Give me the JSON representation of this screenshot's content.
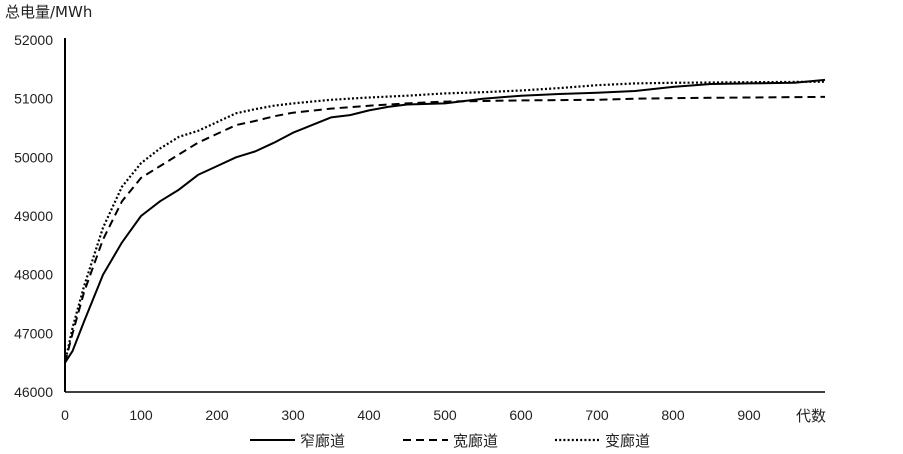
{
  "chart_data": {
    "type": "line",
    "ylabel": "总电量/MWh",
    "xlabel": "代数",
    "ylim": [
      46000,
      52000
    ],
    "xlim": [
      0,
      1000
    ],
    "yticks": [
      46000,
      47000,
      48000,
      49000,
      50000,
      51000,
      52000
    ],
    "xticks": [
      0,
      100,
      200,
      300,
      400,
      500,
      600,
      700,
      800,
      900
    ],
    "grid": false,
    "legend_position": "bottom",
    "series": [
      {
        "name": "窄廊道",
        "style": "solid",
        "color": "#000000",
        "points": [
          [
            0,
            46500
          ],
          [
            10,
            46700
          ],
          [
            25,
            47200
          ],
          [
            50,
            48000
          ],
          [
            75,
            48550
          ],
          [
            100,
            49000
          ],
          [
            125,
            49250
          ],
          [
            150,
            49450
          ],
          [
            175,
            49700
          ],
          [
            200,
            49850
          ],
          [
            225,
            50000
          ],
          [
            250,
            50100
          ],
          [
            275,
            50250
          ],
          [
            300,
            50420
          ],
          [
            325,
            50550
          ],
          [
            350,
            50680
          ],
          [
            375,
            50720
          ],
          [
            400,
            50800
          ],
          [
            425,
            50860
          ],
          [
            450,
            50900
          ],
          [
            500,
            50920
          ],
          [
            550,
            51000
          ],
          [
            600,
            51050
          ],
          [
            650,
            51080
          ],
          [
            700,
            51100
          ],
          [
            750,
            51130
          ],
          [
            800,
            51200
          ],
          [
            850,
            51250
          ],
          [
            900,
            51260
          ],
          [
            960,
            51270
          ],
          [
            1000,
            51320
          ]
        ]
      },
      {
        "name": "宽廊道",
        "style": "dashed",
        "color": "#000000",
        "points": [
          [
            0,
            46500
          ],
          [
            10,
            47000
          ],
          [
            25,
            47700
          ],
          [
            50,
            48600
          ],
          [
            75,
            49250
          ],
          [
            100,
            49650
          ],
          [
            125,
            49850
          ],
          [
            150,
            50050
          ],
          [
            175,
            50250
          ],
          [
            200,
            50400
          ],
          [
            225,
            50550
          ],
          [
            250,
            50620
          ],
          [
            275,
            50700
          ],
          [
            300,
            50760
          ],
          [
            350,
            50830
          ],
          [
            400,
            50880
          ],
          [
            450,
            50920
          ],
          [
            500,
            50950
          ],
          [
            550,
            50960
          ],
          [
            600,
            50970
          ],
          [
            700,
            50980
          ],
          [
            750,
            51000
          ],
          [
            800,
            51010
          ],
          [
            900,
            51020
          ],
          [
            1000,
            51030
          ]
        ]
      },
      {
        "name": "变廊道",
        "style": "dotted",
        "color": "#000000",
        "points": [
          [
            0,
            46500
          ],
          [
            10,
            47100
          ],
          [
            25,
            47800
          ],
          [
            50,
            48800
          ],
          [
            75,
            49500
          ],
          [
            100,
            49900
          ],
          [
            125,
            50150
          ],
          [
            150,
            50350
          ],
          [
            175,
            50450
          ],
          [
            200,
            50600
          ],
          [
            225,
            50750
          ],
          [
            250,
            50820
          ],
          [
            275,
            50880
          ],
          [
            300,
            50920
          ],
          [
            350,
            50980
          ],
          [
            400,
            51020
          ],
          [
            450,
            51050
          ],
          [
            500,
            51090
          ],
          [
            550,
            51110
          ],
          [
            600,
            51140
          ],
          [
            650,
            51180
          ],
          [
            700,
            51230
          ],
          [
            750,
            51260
          ],
          [
            800,
            51270
          ],
          [
            900,
            51280
          ],
          [
            1000,
            51290
          ]
        ]
      }
    ]
  }
}
